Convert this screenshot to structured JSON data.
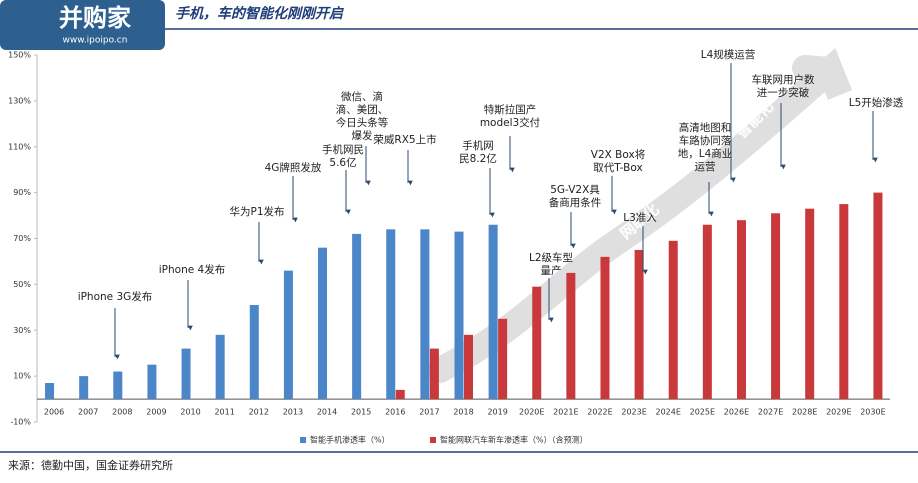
{
  "chart_data": {
    "type": "bar",
    "title": "手机，车的智能化刚刚开启",
    "logo": {
      "name": "并购家",
      "url": "www.ipoipo.cn"
    },
    "source": "来源：德勤中国，国金证券研究所",
    "categories": [
      "2006",
      "2007",
      "2008",
      "2009",
      "2010",
      "2011",
      "2012",
      "2013",
      "2014",
      "2015",
      "2016",
      "2017",
      "2018",
      "2019",
      "2020E",
      "2021E",
      "2022E",
      "2023E",
      "2024E",
      "2025E",
      "2026E",
      "2027E",
      "2028E",
      "2029E",
      "2030E"
    ],
    "series": [
      {
        "name": "智能手机渗透率（%）",
        "color": "#4a86c8",
        "values": [
          7,
          10,
          12,
          15,
          22,
          28,
          41,
          56,
          66,
          72,
          74,
          74,
          73,
          76,
          null,
          null,
          null,
          null,
          null,
          null,
          null,
          null,
          null,
          null,
          null
        ]
      },
      {
        "name": "智能网联汽车新车渗透率（%）（含预测）",
        "color": "#c9383a",
        "values": [
          null,
          null,
          null,
          null,
          null,
          null,
          null,
          null,
          null,
          null,
          4,
          22,
          28,
          35,
          49,
          55,
          62,
          65,
          69,
          76,
          78,
          81,
          83,
          85,
          90
        ]
      }
    ],
    "ylim": [
      -10,
      150
    ],
    "yticks": [
      {
        "value": -10,
        "label": "-10%"
      },
      {
        "value": 10,
        "label": "10%"
      },
      {
        "value": 30,
        "label": "30%"
      },
      {
        "value": 50,
        "label": "50%"
      },
      {
        "value": 70,
        "label": "70%"
      },
      {
        "value": 90,
        "label": "90%"
      },
      {
        "value": 110,
        "label": "110%"
      },
      {
        "value": 130,
        "label": "130%"
      },
      {
        "value": 150,
        "label": "150%"
      }
    ],
    "band_labels": [
      "电动化",
      "网联化",
      "智能化"
    ],
    "annotations": [
      [
        "iPhone 3G发布"
      ],
      [
        "iPhone 4发布"
      ],
      [
        "华为P1发布"
      ],
      [
        "4G牌照发放"
      ],
      [
        "手机网民",
        "5.6亿"
      ],
      [
        "微信、滴",
        "滴、美团、",
        "今日头条等",
        "爆发"
      ],
      [
        "荣威RX5上市"
      ],
      [
        "手机网",
        "民8.2亿"
      ],
      [
        "特斯拉国产",
        "model3交付"
      ],
      [
        "L2级车型",
        "量产"
      ],
      [
        "5G-V2X具",
        "备商用条件"
      ],
      [
        "V2X Box将",
        "取代T-Box"
      ],
      [
        "L3准入"
      ],
      [
        "高清地图和",
        "车路协同落",
        "地，L4商业",
        "运营"
      ],
      [
        "L4规模运营"
      ],
      [
        "车联网用户数",
        "进一步突破"
      ],
      [
        "L5开始渗透"
      ]
    ]
  }
}
